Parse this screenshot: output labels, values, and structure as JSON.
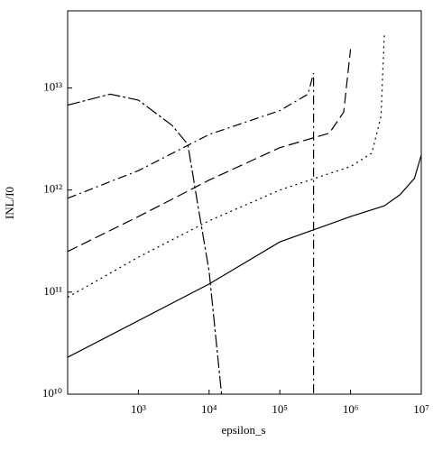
{
  "chart_data": {
    "type": "line",
    "x_label": "epsilon_s",
    "y_label": "INL/I0",
    "xlog": true,
    "ylog": true,
    "xlim": [
      100,
      10000000
    ],
    "ylim": [
      10000000000,
      57000000000000
    ],
    "xticks": [
      {
        "value": 1000,
        "label": "10³"
      },
      {
        "value": 10000,
        "label": "10⁴"
      },
      {
        "value": 100000,
        "label": "10⁵"
      },
      {
        "value": 1000000,
        "label": "10⁶"
      },
      {
        "value": 10000000,
        "label": "10⁷"
      }
    ],
    "yticks": [
      {
        "value": 10000000000,
        "label": "10¹⁰"
      },
      {
        "value": 100000000000,
        "label": "10¹¹"
      },
      {
        "value": 1000000000000,
        "label": "10¹²"
      },
      {
        "value": 10000000000000,
        "label": "10¹³"
      }
    ],
    "series": [
      {
        "color": "#000000",
        "dash": "none",
        "x": [
          100,
          10000,
          100000,
          1000000,
          3000000,
          5000000,
          8000000,
          10000000
        ],
        "values": [
          23000000000,
          120000000000,
          310000000000,
          550000000000,
          700000000000,
          900000000000,
          1300000000000,
          2200000000000
        ]
      },
      {
        "color": "#000000",
        "dash": "2,4",
        "x": [
          100,
          1000,
          10000,
          100000,
          1000000,
          2000000,
          2700000,
          3000000
        ],
        "values": [
          89000000000,
          220000000000,
          500000000000,
          1000000000000,
          1700000000000,
          2300000000000,
          5300000000000,
          33000000000000
        ]
      },
      {
        "color": "#000000",
        "dash": "12,5",
        "x": [
          100,
          1000,
          10000,
          100000,
          500000,
          800000,
          1000000
        ],
        "values": [
          250000000000,
          550000000000,
          1250000000000,
          2600000000000,
          3600000000000,
          5800000000000,
          24000000000000
        ]
      },
      {
        "color": "#000000",
        "dash": "10,4,2,4",
        "x": [
          100,
          1000,
          10000,
          100000,
          250000,
          300000,
          300000
        ],
        "values": [
          830000000000,
          1550000000000,
          3500000000000,
          6000000000000,
          8700000000000,
          14000000000000,
          10000000000
        ]
      },
      {
        "color": "#000000",
        "dash": "14,3,3,3",
        "x": [
          100,
          400,
          1000,
          3000,
          5000,
          7000,
          10000,
          15000
        ],
        "values": [
          6800000000000,
          8700000000000,
          7600000000000,
          4300000000000,
          2800000000000,
          680000000000,
          160000000000,
          10000000000
        ]
      }
    ]
  }
}
